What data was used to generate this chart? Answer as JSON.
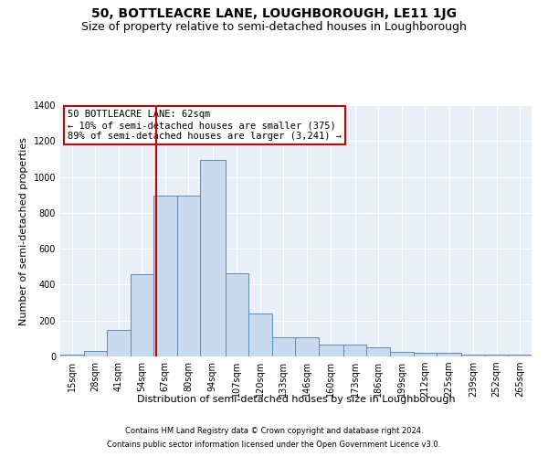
{
  "title": "50, BOTTLEACRE LANE, LOUGHBOROUGH, LE11 1JG",
  "subtitle": "Size of property relative to semi-detached houses in Loughborough",
  "xlabel": "Distribution of semi-detached houses by size in Loughborough",
  "ylabel": "Number of semi-detached properties",
  "footnote1": "Contains HM Land Registry data © Crown copyright and database right 2024.",
  "footnote2": "Contains public sector information licensed under the Open Government Licence v3.0.",
  "annotation_line1": "50 BOTTLEACRE LANE: 62sqm",
  "annotation_line2": "← 10% of semi-detached houses are smaller (375)",
  "annotation_line3": "89% of semi-detached houses are larger (3,241) →",
  "bar_color": "#c9d9ee",
  "bar_edge_color": "#5b8db8",
  "vline_color": "#cc0000",
  "vline_x": 62,
  "categories": [
    "15sqm",
    "28sqm",
    "41sqm",
    "54sqm",
    "67sqm",
    "80sqm",
    "94sqm",
    "107sqm",
    "120sqm",
    "133sqm",
    "146sqm",
    "160sqm",
    "173sqm",
    "186sqm",
    "199sqm",
    "212sqm",
    "225sqm",
    "239sqm",
    "252sqm",
    "265sqm"
  ],
  "bin_edges": [
    8.5,
    21.5,
    34.5,
    47.5,
    60.5,
    73.5,
    86.5,
    100.5,
    113.5,
    126.5,
    139.5,
    152.5,
    166.5,
    179.5,
    192.5,
    205.5,
    218.5,
    232.5,
    245.5,
    258.5,
    271.5
  ],
  "values": [
    8,
    30,
    148,
    460,
    895,
    895,
    1095,
    465,
    240,
    108,
    108,
    68,
    65,
    52,
    25,
    20,
    20,
    12,
    8,
    12
  ],
  "ylim": [
    0,
    1400
  ],
  "yticks": [
    0,
    200,
    400,
    600,
    800,
    1000,
    1200,
    1400
  ],
  "bg_color": "#eaf0f8",
  "title_fontsize": 10,
  "subtitle_fontsize": 9,
  "axis_label_fontsize": 8,
  "tick_fontsize": 7,
  "footnote_fontsize": 6,
  "annotation_fontsize": 7.5
}
